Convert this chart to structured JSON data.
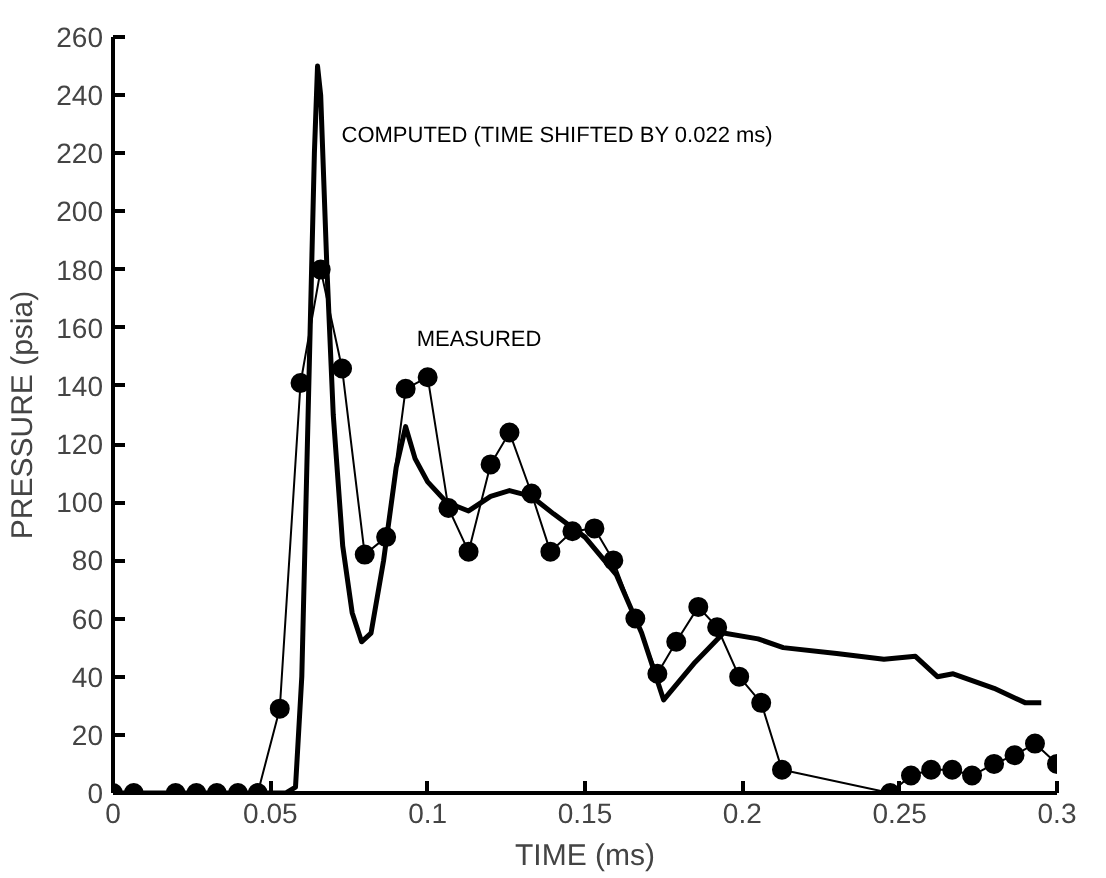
{
  "chart_data": {
    "type": "line",
    "xlabel": "TIME (ms)",
    "ylabel": "PRESSURE (psia)",
    "xlim": [
      0,
      0.3
    ],
    "ylim": [
      0,
      260
    ],
    "xticks": [
      0,
      0.05,
      0.1,
      0.15,
      0.2,
      0.25,
      0.3
    ],
    "yticks": [
      0,
      20,
      40,
      60,
      80,
      100,
      120,
      140,
      160,
      180,
      200,
      220,
      240,
      260
    ],
    "grid": false,
    "series": [
      {
        "name": "MEASURED",
        "color": "#000000",
        "marker": "circle",
        "x": [
          0,
          0.0066,
          0.0199,
          0.0265,
          0.033,
          0.0397,
          0.046,
          0.053,
          0.0596,
          0.066,
          0.0728,
          0.08,
          0.0868,
          0.093,
          0.1,
          0.1066,
          0.113,
          0.12,
          0.126,
          0.133,
          0.139,
          0.146,
          0.153,
          0.159,
          0.166,
          0.173,
          0.179,
          0.186,
          0.192,
          0.199,
          0.206,
          0.2126,
          0.247,
          0.2536,
          0.26,
          0.2667,
          0.273,
          0.28,
          0.2865,
          0.293,
          0.3
        ],
        "values": [
          0,
          0,
          0,
          0,
          0,
          0,
          0,
          29,
          141,
          180,
          146,
          82,
          88,
          139,
          143,
          98,
          83,
          113,
          124,
          103,
          83,
          90,
          91,
          80,
          60,
          41,
          52,
          64,
          57,
          40,
          31,
          8,
          0,
          6,
          8,
          8,
          6,
          10,
          13,
          17,
          10
        ]
      },
      {
        "name": "COMPUTED (TIME SHIFTED BY 0.022 ms)",
        "color": "#000000",
        "marker": "none",
        "x": [
          0,
          0.055,
          0.058,
          0.06,
          0.062,
          0.064,
          0.065,
          0.066,
          0.068,
          0.07,
          0.073,
          0.076,
          0.079,
          0.082,
          0.086,
          0.09,
          0.093,
          0.096,
          0.1,
          0.106,
          0.113,
          0.12,
          0.126,
          0.133,
          0.14,
          0.15,
          0.16,
          0.168,
          0.175,
          0.185,
          0.194,
          0.205,
          0.213,
          0.23,
          0.245,
          0.255,
          0.262,
          0.267,
          0.28,
          0.29,
          0.295
        ],
        "values": [
          0,
          0,
          2,
          40,
          130,
          220,
          250,
          240,
          180,
          130,
          85,
          62,
          52,
          55,
          80,
          112,
          126,
          115,
          107,
          100,
          97,
          102,
          104,
          102,
          96,
          88,
          75,
          55,
          32,
          45,
          55,
          53,
          50,
          48,
          46,
          47,
          40,
          41,
          36,
          31,
          31
        ]
      }
    ]
  }
}
